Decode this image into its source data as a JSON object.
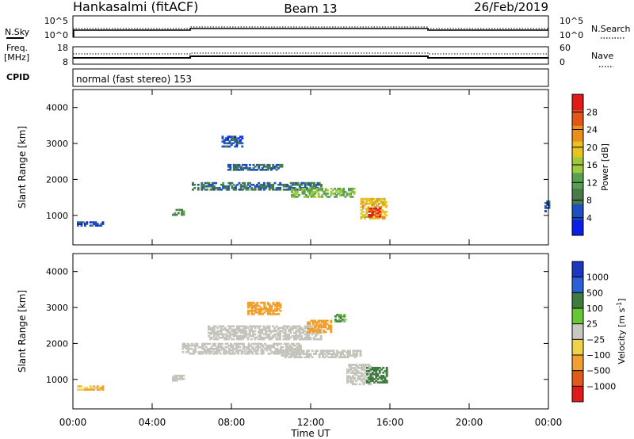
{
  "header": {
    "station": "Hankasalmi (fitACF)",
    "beam": "Beam 13",
    "date": "26/Feb/2019"
  },
  "status_panels": {
    "nsky": {
      "label": "N.Sky",
      "right_label": "N.Search",
      "left_ticks": [
        "10^5",
        "10^0"
      ],
      "right_ticks": [
        "10^5",
        "10^0"
      ]
    },
    "freq": {
      "label_line1": "Freq.",
      "label_line2": "[MHz]",
      "right_label": "Nave",
      "left_ticks": [
        "18",
        "8"
      ],
      "right_ticks": [
        "60",
        "0"
      ]
    },
    "cpid": {
      "label": "CPID",
      "mode_text": "normal (fast stereo) 153"
    }
  },
  "colors": {
    "power_scale": [
      "#0a1ee6",
      "#1c4fbf",
      "#4a7a4a",
      "#57a04f",
      "#9dc93f",
      "#e8c21f",
      "#e8901a",
      "#e2561a",
      "#e21a1a"
    ],
    "velocity_scale": [
      "#1c36bf",
      "#2a5fd6",
      "#3f7a3f",
      "#63c833",
      "#c8c8c0",
      "#f0d24a",
      "#f0a030",
      "#e05a1a",
      "#e01a1a"
    ],
    "ground_scatter": "#c4c4bc"
  },
  "chart_data": [
    {
      "type": "heatmap",
      "title": "",
      "ylabel": "Slant Range [km]",
      "xlabel": "",
      "ylim": [
        180,
        4500
      ],
      "xlim": [
        "00:00",
        "24:00"
      ],
      "y_ticks": [
        "1000",
        "2000",
        "3000",
        "4000"
      ],
      "colorbar": {
        "label": "Power [dB]",
        "range": [
          0,
          32
        ],
        "ticks": [
          "4",
          "8",
          "12",
          "16",
          "20",
          "24",
          "28"
        ]
      },
      "echo_regions": [
        {
          "t_start": 7.5,
          "t_end": 8.5,
          "r_start": 2900,
          "r_end": 3200,
          "power": 6
        },
        {
          "t_start": 7.8,
          "t_end": 10.5,
          "r_start": 2250,
          "r_end": 2400,
          "power": 7
        },
        {
          "t_start": 6.0,
          "t_end": 12.5,
          "r_start": 1700,
          "r_end": 1900,
          "power": 8
        },
        {
          "t_start": 11.0,
          "t_end": 14.2,
          "r_start": 1500,
          "r_end": 1750,
          "power": 14
        },
        {
          "t_start": 14.5,
          "t_end": 15.8,
          "r_start": 900,
          "r_end": 1450,
          "power": 20
        },
        {
          "t_start": 14.9,
          "t_end": 15.5,
          "r_start": 950,
          "r_end": 1200,
          "power": 28
        },
        {
          "t_start": 5.0,
          "t_end": 5.6,
          "r_start": 1000,
          "r_end": 1150,
          "power": 10
        },
        {
          "t_start": 0.2,
          "t_end": 1.5,
          "r_start": 700,
          "r_end": 800,
          "power": 6
        },
        {
          "t_start": 23.8,
          "t_end": 24.0,
          "r_start": 1100,
          "r_end": 1400,
          "power": 6
        }
      ]
    },
    {
      "type": "heatmap",
      "title": "",
      "ylabel": "Slant Range [km]",
      "xlabel": "Time UT",
      "ylim": [
        180,
        4500
      ],
      "xlim": [
        "00:00",
        "24:00"
      ],
      "x_ticks": [
        "00:00",
        "04:00",
        "08:00",
        "12:00",
        "16:00",
        "20:00",
        "00:00"
      ],
      "y_ticks": [
        "1000",
        "2000",
        "3000",
        "4000"
      ],
      "colorbar": {
        "label": "Velocity [m s",
        "label_sup": "-1",
        "label_close": "]",
        "ticks": [
          "1000",
          "500",
          "100",
          "25",
          "−25",
          "−100",
          "−500",
          "−1000"
        ]
      },
      "echo_regions": [
        {
          "t_start": 8.8,
          "t_end": 10.5,
          "r_start": 2800,
          "r_end": 3150,
          "velocity": -300
        },
        {
          "t_start": 11.8,
          "t_end": 13.0,
          "r_start": 2300,
          "r_end": 2650,
          "velocity": -400
        },
        {
          "t_start": 13.2,
          "t_end": 13.8,
          "r_start": 2600,
          "r_end": 2800,
          "velocity": 120
        },
        {
          "t_start": 14.8,
          "t_end": 15.8,
          "r_start": 900,
          "r_end": 1350,
          "velocity": 200
        },
        {
          "t_start": 0.2,
          "t_end": 1.5,
          "r_start": 700,
          "r_end": 800,
          "velocity": -110
        }
      ],
      "ground_scatter_regions": [
        {
          "t_start": 6.8,
          "t_end": 12.5,
          "r_start": 2100,
          "r_end": 2500
        },
        {
          "t_start": 5.5,
          "t_end": 11.5,
          "r_start": 1700,
          "r_end": 2000
        },
        {
          "t_start": 10.5,
          "t_end": 14.5,
          "r_start": 1600,
          "r_end": 1800
        },
        {
          "t_start": 13.8,
          "t_end": 15.0,
          "r_start": 850,
          "r_end": 1400
        },
        {
          "t_start": 5.0,
          "t_end": 5.6,
          "r_start": 950,
          "r_end": 1100
        }
      ]
    }
  ]
}
